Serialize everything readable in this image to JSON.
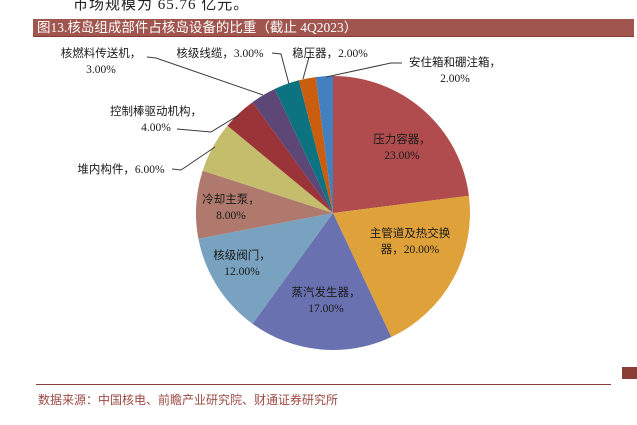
{
  "page": {
    "top_text_fragment": "市场规模为 65.76 亿元。"
  },
  "figure": {
    "title": "图13.核岛组成部件占核岛设备的比重（截止 4Q2023）"
  },
  "footer": {
    "source": "数据来源：中国核电、前瞻产业研究院、财通证券研究所"
  },
  "colors": {
    "title_bar": "#A0554E",
    "title_text": "#FFFFFF",
    "footer_text": "#9C4A43",
    "rule": "#8C3D36",
    "leader_line": "#3A3A3A"
  },
  "chart_data": {
    "type": "pie",
    "title": "核岛组成部件占核岛设备的比重（截止 4Q2023）",
    "start_angle_deg": 0,
    "direction": "clockwise",
    "legend_position": "none",
    "categories": [
      "压力容器",
      "主管道及热交换器",
      "蒸汽发生器",
      "核级阀门",
      "冷却主泵",
      "堆内构件",
      "控制棒驱动机构",
      "核燃料传送机",
      "核级线缆",
      "稳压器",
      "安住箱和硼注箱"
    ],
    "values": [
      23,
      20,
      17,
      12,
      8,
      6,
      4,
      3,
      3,
      2,
      2
    ],
    "slices": [
      {
        "id": "pressure-vessel",
        "label": "压力容器",
        "value": 23,
        "color": "#B04C4D",
        "display": "压力容器，\n23.00%"
      },
      {
        "id": "main-pipeline-heat-exchanger",
        "label": "主管道及热交换器",
        "value": 20,
        "color": "#DFA13A",
        "display": "主管道及热交换\n器，20.00%"
      },
      {
        "id": "steam-generator",
        "label": "蒸汽发生器",
        "value": 17,
        "color": "#6971B0",
        "display": "蒸汽发生器，\n17.00%"
      },
      {
        "id": "nuclear-grade-valves",
        "label": "核级阀门",
        "value": 12,
        "color": "#78A2BF",
        "display": "核级阀门，\n12.00%"
      },
      {
        "id": "main-cooling-pump",
        "label": "冷却主泵",
        "value": 8,
        "color": "#AF796D",
        "display": "冷却主泵，\n8.00%"
      },
      {
        "id": "reactor-internals",
        "label": "堆内构件",
        "value": 6,
        "color": "#C4BE6C",
        "display": "堆内构件，6.00%"
      },
      {
        "id": "control-rod-drive-mechanism",
        "label": "控制棒驱动机构",
        "value": 4,
        "color": "#9A3438",
        "display": "控制棒驱动机构，\n4.00%"
      },
      {
        "id": "fuel-transfer-machine",
        "label": "核燃料传送机",
        "value": 3,
        "color": "#5D4777",
        "display": "核燃料传送机，\n3.00%"
      },
      {
        "id": "nuclear-grade-cables",
        "label": "核级线缆",
        "value": 3,
        "color": "#0E7380",
        "display": "核级线缆，3.00%"
      },
      {
        "id": "pressurizer",
        "label": "稳压器",
        "value": 2,
        "color": "#CA5D0E",
        "display": "稳压器，2.00%"
      },
      {
        "id": "safety-injection-tank",
        "label": "安住箱和硼注箱",
        "value": 2,
        "color": "#4280BF",
        "display": "安住箱和硼注箱，\n2.00%"
      }
    ]
  }
}
